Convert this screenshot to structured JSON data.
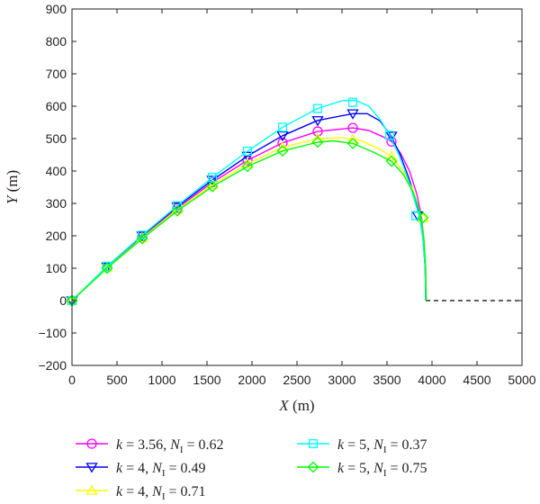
{
  "chart_data": {
    "type": "line",
    "xlabel": "X (m)",
    "xlabel_var": "X",
    "xlabel_unit": " (m)",
    "ylabel": "Y (m)",
    "ylabel_var": "Y",
    "ylabel_unit": " (m)",
    "xlim": [
      0,
      5000
    ],
    "ylim": [
      -200,
      900
    ],
    "xticks": [
      0,
      500,
      1000,
      1500,
      2000,
      2500,
      3000,
      3500,
      4000,
      4500,
      5000
    ],
    "yticks": [
      -200,
      -100,
      0,
      100,
      200,
      300,
      400,
      500,
      600,
      700,
      800,
      900
    ],
    "grid": false,
    "legend_position": "bottom",
    "series": [
      {
        "name": "k = 3.56, NI = 0.62",
        "label_k": "3.56",
        "label_n": "0.62",
        "color": "#ff00ff",
        "marker": "circle",
        "points": [
          [
            0,
            0
          ],
          [
            390,
            102
          ],
          [
            780,
            197
          ],
          [
            1170,
            285
          ],
          [
            1560,
            365
          ],
          [
            1950,
            433
          ],
          [
            2340,
            487
          ],
          [
            2730,
            522
          ],
          [
            3120,
            533
          ],
          [
            3300,
            525
          ],
          [
            3460,
            505
          ],
          [
            3550,
            491
          ],
          [
            3650,
            455
          ],
          [
            3750,
            400
          ],
          [
            3830,
            330
          ],
          [
            3880,
            265
          ],
          [
            3910,
            190
          ],
          [
            3925,
            100
          ],
          [
            3930,
            0
          ]
        ],
        "markers": [
          [
            0,
            0
          ],
          [
            390,
            102
          ],
          [
            780,
            197
          ],
          [
            1170,
            285
          ],
          [
            1560,
            365
          ],
          [
            1950,
            433
          ],
          [
            2340,
            487
          ],
          [
            2730,
            522
          ],
          [
            3120,
            533
          ],
          [
            3550,
            491
          ]
        ]
      },
      {
        "name": "k = 4, NI = 0.49",
        "label_k": "4",
        "label_n": "0.49",
        "color": "#0000ff",
        "marker": "triangle-down",
        "points": [
          [
            0,
            0
          ],
          [
            390,
            104
          ],
          [
            780,
            200
          ],
          [
            1170,
            290
          ],
          [
            1560,
            372
          ],
          [
            1950,
            446
          ],
          [
            2340,
            509
          ],
          [
            2730,
            556
          ],
          [
            3120,
            577
          ],
          [
            3280,
            577
          ],
          [
            3420,
            555
          ],
          [
            3540,
            510
          ],
          [
            3640,
            455
          ],
          [
            3740,
            380
          ],
          [
            3810,
            320
          ],
          [
            3860,
            265
          ],
          [
            3900,
            190
          ],
          [
            3925,
            100
          ],
          [
            3930,
            0
          ]
        ],
        "markers": [
          [
            0,
            0
          ],
          [
            390,
            104
          ],
          [
            780,
            200
          ],
          [
            1170,
            290
          ],
          [
            1560,
            372
          ],
          [
            1950,
            446
          ],
          [
            2340,
            509
          ],
          [
            2730,
            556
          ],
          [
            3120,
            577
          ],
          [
            3550,
            508
          ],
          [
            3840,
            262
          ]
        ]
      },
      {
        "name": "k = 4, NI = 0.71",
        "label_k": "4",
        "label_n": "0.71",
        "color": "#ffff00",
        "marker": "triangle-up",
        "points": [
          [
            0,
            0
          ],
          [
            390,
            101
          ],
          [
            780,
            194
          ],
          [
            1170,
            281
          ],
          [
            1560,
            357
          ],
          [
            1950,
            423
          ],
          [
            2340,
            473
          ],
          [
            2730,
            500
          ],
          [
            3000,
            503
          ],
          [
            3200,
            495
          ],
          [
            3400,
            470
          ],
          [
            3550,
            445
          ],
          [
            3680,
            400
          ],
          [
            3790,
            340
          ],
          [
            3870,
            270
          ],
          [
            3910,
            190
          ],
          [
            3930,
            100
          ],
          [
            3935,
            0
          ]
        ],
        "markers": [
          [
            0,
            0
          ],
          [
            390,
            101
          ],
          [
            780,
            194
          ],
          [
            1170,
            281
          ],
          [
            1560,
            357
          ],
          [
            1950,
            423
          ],
          [
            2340,
            473
          ],
          [
            2730,
            500
          ],
          [
            3120,
            497
          ],
          [
            3550,
            445
          ],
          [
            3900,
            255
          ]
        ]
      },
      {
        "name": "k = 5, NI = 0.37",
        "label_k": "5",
        "label_n": "0.37",
        "color": "#00ffff",
        "marker": "square",
        "points": [
          [
            0,
            0
          ],
          [
            390,
            106
          ],
          [
            780,
            202
          ],
          [
            1170,
            293
          ],
          [
            1560,
            380
          ],
          [
            1950,
            461
          ],
          [
            2340,
            535
          ],
          [
            2730,
            593
          ],
          [
            3000,
            617
          ],
          [
            3150,
            618
          ],
          [
            3300,
            600
          ],
          [
            3420,
            560
          ],
          [
            3530,
            510
          ],
          [
            3640,
            445
          ],
          [
            3740,
            370
          ],
          [
            3810,
            305
          ],
          [
            3860,
            260
          ],
          [
            3900,
            190
          ],
          [
            3925,
            100
          ],
          [
            3930,
            0
          ]
        ],
        "markers": [
          [
            0,
            0
          ],
          [
            390,
            106
          ],
          [
            780,
            202
          ],
          [
            1170,
            293
          ],
          [
            1560,
            380
          ],
          [
            1950,
            461
          ],
          [
            2340,
            535
          ],
          [
            2730,
            593
          ],
          [
            3120,
            612
          ],
          [
            3530,
            510
          ],
          [
            3820,
            262
          ]
        ]
      },
      {
        "name": "k = 5, NI = 0.75",
        "label_k": "5",
        "label_n": "0.75",
        "color": "#00ff00",
        "marker": "diamond",
        "points": [
          [
            0,
            0
          ],
          [
            390,
            100
          ],
          [
            780,
            191
          ],
          [
            1170,
            277
          ],
          [
            1560,
            352
          ],
          [
            1950,
            414
          ],
          [
            2340,
            462
          ],
          [
            2730,
            489
          ],
          [
            2900,
            493
          ],
          [
            3120,
            485
          ],
          [
            3350,
            458
          ],
          [
            3550,
            430
          ],
          [
            3680,
            390
          ],
          [
            3790,
            335
          ],
          [
            3870,
            270
          ],
          [
            3910,
            190
          ],
          [
            3930,
            100
          ],
          [
            3935,
            0
          ]
        ],
        "markers": [
          [
            0,
            0
          ],
          [
            390,
            100
          ],
          [
            780,
            191
          ],
          [
            1170,
            277
          ],
          [
            1560,
            352
          ],
          [
            1950,
            414
          ],
          [
            2340,
            462
          ],
          [
            2730,
            489
          ],
          [
            3120,
            485
          ],
          [
            3550,
            430
          ],
          [
            3900,
            256
          ]
        ]
      }
    ],
    "reference_line": {
      "style": "dashed",
      "color": "#000000",
      "points": [
        [
          3930,
          0
        ],
        [
          5000,
          0
        ]
      ]
    }
  }
}
